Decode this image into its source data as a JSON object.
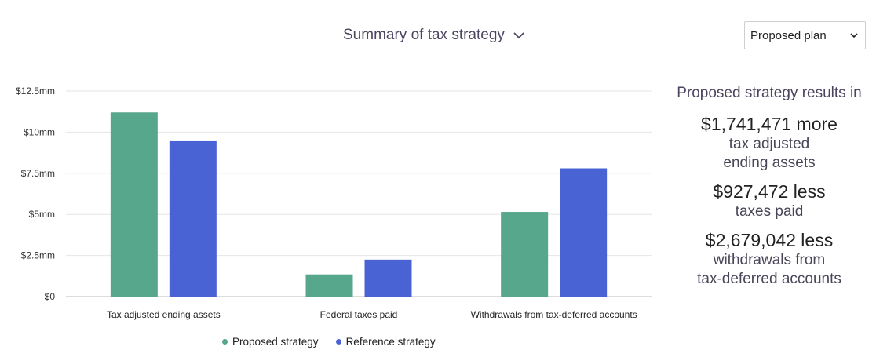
{
  "header": {
    "title": "Summary of tax strategy"
  },
  "plan_select": {
    "selected": "Proposed plan"
  },
  "colors": {
    "proposed": "#57a78c",
    "reference": "#4a63d4",
    "grid": "#e6e6e6",
    "axis": "#bbbbbb"
  },
  "chart_data": {
    "type": "bar",
    "categories": [
      "Tax adjusted ending assets",
      "Federal taxes paid",
      "Withdrawals from tax-deferred accounts"
    ],
    "series": [
      {
        "name": "Proposed strategy",
        "values": [
          11.2,
          1.35,
          5.15
        ]
      },
      {
        "name": "Reference strategy",
        "values": [
          9.45,
          2.25,
          7.8
        ]
      }
    ],
    "y_ticks": [
      0,
      2.5,
      5,
      7.5,
      10,
      12.5
    ],
    "y_tick_labels": [
      "$0",
      "$2.5mm",
      "$5mm",
      "$7.5mm",
      "$10mm",
      "$12.5mm"
    ],
    "ylim": [
      0,
      12.5
    ],
    "grid": true,
    "legend_position": "bottom"
  },
  "results": {
    "heading": "Proposed strategy results in",
    "items": [
      {
        "value": "$1,741,471 more",
        "desc": "tax adjusted\nending assets"
      },
      {
        "value": "$927,472 less",
        "desc": "taxes paid"
      },
      {
        "value": "$2,679,042 less",
        "desc": "withdrawals from\ntax-deferred accounts"
      }
    ]
  }
}
